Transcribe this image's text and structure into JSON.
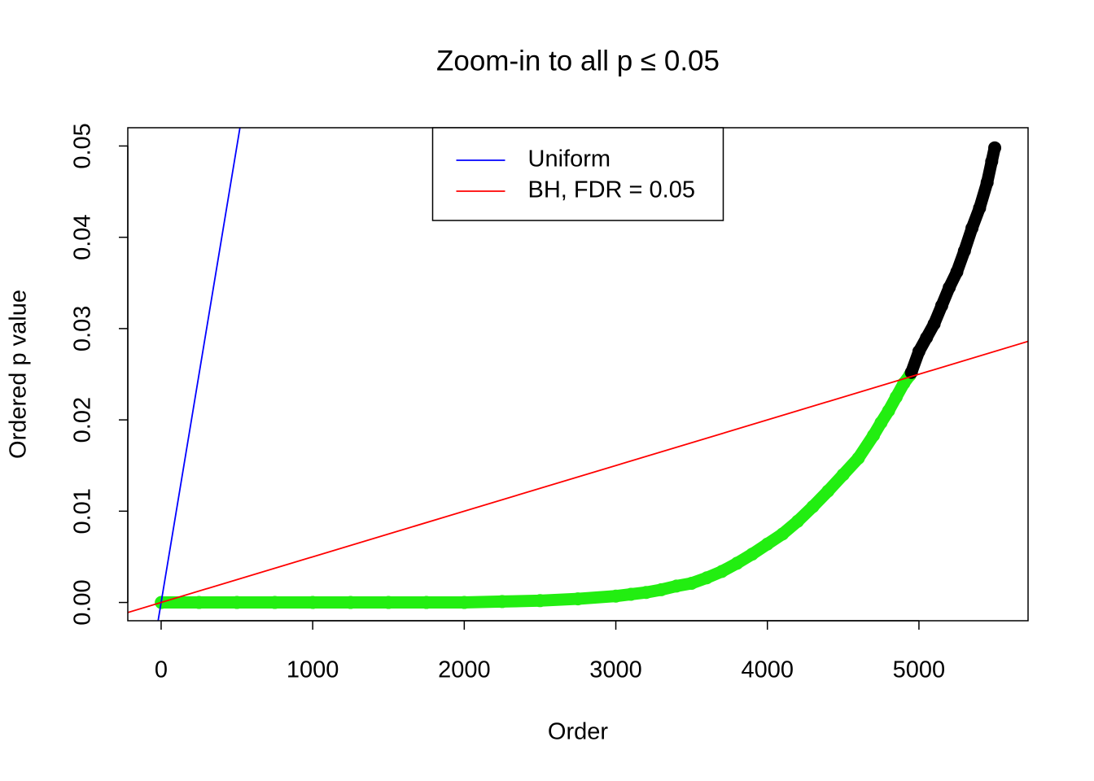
{
  "chart_data": {
    "type": "scatter",
    "title": "Zoom-in to all p ≤ 0.05",
    "x_label": "Order",
    "y_label": "Ordered p value",
    "xlim": [
      -220,
      5720
    ],
    "ylim": [
      -0.002,
      0.052
    ],
    "xticks": [
      0,
      1000,
      2000,
      3000,
      4000,
      5000
    ],
    "yticks": [
      {
        "value": 0,
        "label": "0.00"
      },
      0.01,
      0.02,
      0.03,
      0.04,
      0.05
    ],
    "legend_position": "top",
    "point_series": [
      {
        "color": "#22ee11",
        "x": [
          1,
          250,
          500,
          750,
          1000,
          1250,
          1500,
          1750,
          2000,
          2250,
          2500,
          2750,
          3000,
          3100,
          3200,
          3300,
          3400,
          3500,
          3600,
          3700,
          3800,
          3900,
          4000,
          4100,
          4200,
          4300,
          4400,
          4500,
          4600,
          4700,
          4750,
          4800,
          4850,
          4900,
          4940
        ],
        "values": [
          0,
          0,
          0,
          0,
          0,
          0,
          0,
          0,
          0,
          0.0001,
          0.0002,
          0.0004,
          0.0007,
          0.0009,
          0.0011,
          0.0014,
          0.0018,
          0.0021,
          0.0027,
          0.0034,
          0.0043,
          0.0053,
          0.0064,
          0.0075,
          0.0089,
          0.0105,
          0.0122,
          0.014,
          0.0158,
          0.0183,
          0.0197,
          0.021,
          0.0225,
          0.024,
          0.0249
        ]
      },
      {
        "color": "#000000",
        "x": [
          4950,
          5000,
          5050,
          5100,
          5150,
          5200,
          5250,
          5300,
          5350,
          5400,
          5450,
          5480,
          5500
        ],
        "values": [
          0.0252,
          0.0275,
          0.029,
          0.0305,
          0.0325,
          0.0345,
          0.0362,
          0.0385,
          0.041,
          0.0432,
          0.046,
          0.0483,
          0.0498
        ]
      }
    ],
    "lines": [
      {
        "name": "Uniform",
        "color": "#0000ff",
        "intercept": 0,
        "slope": 0.0001
      },
      {
        "name": "BH, FDR = 0.05",
        "color": "#ff0000",
        "intercept": 0,
        "slope": 5e-06
      }
    ]
  }
}
